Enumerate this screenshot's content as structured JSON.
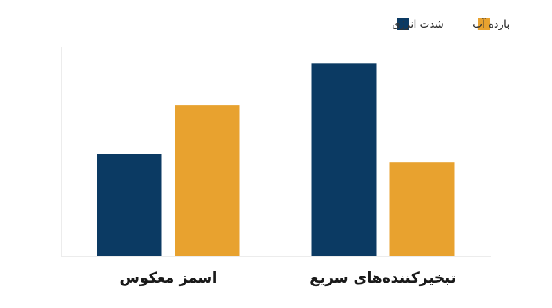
{
  "chart_data": {
    "type": "bar",
    "categories": [
      "تبخیرکننده‌های سریع",
      "اسمز معکوس"
    ],
    "series": [
      {
        "name": "شدت انرژی",
        "color": "#0b3a63",
        "values": [
          92,
          49
        ]
      },
      {
        "name": "بازده آب",
        "color": "#e8a22f",
        "values": [
          45,
          72
        ]
      }
    ],
    "title": "",
    "xlabel": "",
    "ylabel": "",
    "ylim": [
      0,
      100
    ],
    "grid": false,
    "legend": "top-right",
    "axis_color": "#cccccc"
  }
}
